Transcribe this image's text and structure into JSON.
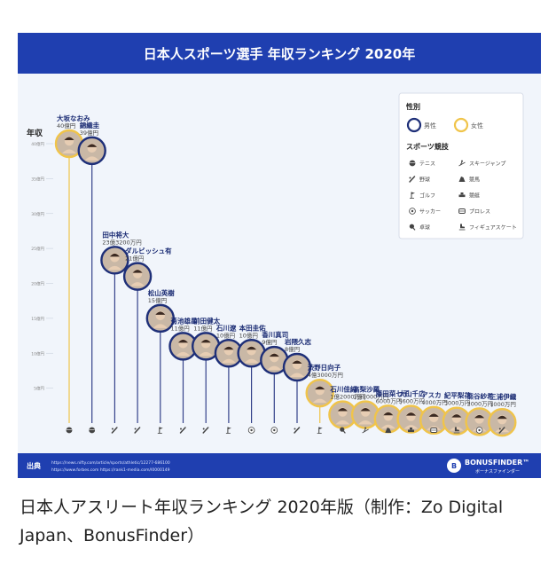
{
  "colors": {
    "header_bg": "#1f3fb0",
    "plot_bg": "#f1f5fb",
    "male": "#1e2f78",
    "female": "#f0c44a",
    "source_bg": "#1f3fb0",
    "male_line": "#34418a",
    "female_line": "#f0c44a",
    "photo_bg": "#c9b8a6"
  },
  "chart_data": {
    "type": "bar",
    "title": "日本人スポーツ選手 年収ランキング 2020年",
    "ylabel": "年収",
    "ylim": [
      0,
      40
    ],
    "yticks": [
      {
        "value": 5,
        "label": "5億円"
      },
      {
        "value": 10,
        "label": "10億円"
      },
      {
        "value": 15,
        "label": "15億円"
      },
      {
        "value": 20,
        "label": "20億円"
      },
      {
        "value": 25,
        "label": "25億円"
      },
      {
        "value": 30,
        "label": "30億円"
      },
      {
        "value": 35,
        "label": "35億円"
      },
      {
        "value": 40,
        "label": "40億円"
      }
    ],
    "athletes": [
      {
        "name": "大坂なおみ",
        "amount": "40億円",
        "value": 40,
        "gender": "female",
        "sport": "tennis"
      },
      {
        "name": "錦織圭",
        "amount": "39億円",
        "value": 39,
        "gender": "male",
        "sport": "tennis"
      },
      {
        "name": "田中将大",
        "amount": "23億3200万円",
        "value": 23.32,
        "gender": "male",
        "sport": "baseball"
      },
      {
        "name": "ダルビッシュ有",
        "amount": "21億円",
        "value": 21,
        "gender": "male",
        "sport": "baseball"
      },
      {
        "name": "松山英樹",
        "amount": "15億円",
        "value": 15,
        "gender": "male",
        "sport": "golf"
      },
      {
        "name": "菊池雄星",
        "amount": "11億円",
        "value": 11,
        "gender": "male",
        "sport": "baseball"
      },
      {
        "name": "前田健太",
        "amount": "11億円",
        "value": 11,
        "gender": "male",
        "sport": "baseball"
      },
      {
        "name": "石川遼",
        "amount": "10億円",
        "value": 10,
        "gender": "male",
        "sport": "golf"
      },
      {
        "name": "本田圭佑",
        "amount": "10億円",
        "value": 10,
        "gender": "male",
        "sport": "soccer"
      },
      {
        "name": "香川真司",
        "amount": "9億円",
        "value": 9,
        "gender": "male",
        "sport": "soccer"
      },
      {
        "name": "岩隈久志",
        "amount": "8億円",
        "value": 8,
        "gender": "male",
        "sport": "baseball"
      },
      {
        "name": "渋野日向子",
        "amount": "4億3000万円",
        "value": 4.3,
        "gender": "female",
        "sport": "golf"
      },
      {
        "name": "石川佳純",
        "amount": "1億2000万円",
        "value": 1.2,
        "gender": "female",
        "sport": "table-tennis"
      },
      {
        "name": "高梨沙羅",
        "amount": "1億2000万円",
        "value": 1.2,
        "gender": "female",
        "sport": "ski-jump"
      },
      {
        "name": "藤田菜七子",
        "amount": "6000万円",
        "value": 0.6,
        "gender": "female",
        "sport": "horse-racing"
      },
      {
        "name": "大山千広",
        "amount": "5600万円",
        "value": 0.56,
        "gender": "female",
        "sport": "boat-racing"
      },
      {
        "name": "アスカ",
        "amount": "4000万円",
        "value": 0.4,
        "gender": "female",
        "sport": "pro-wrestling"
      },
      {
        "name": "紀平梨花",
        "amount": "3000万円",
        "value": 0.3,
        "gender": "female",
        "sport": "figure-skating"
      },
      {
        "name": "熊谷紗希",
        "amount": "2000万円",
        "value": 0.2,
        "gender": "female",
        "sport": "soccer"
      },
      {
        "name": "三浦伊織",
        "amount": "1000万円",
        "value": 0.1,
        "gender": "female",
        "sport": "baseball"
      }
    ]
  },
  "legend": {
    "gender_title": "性別",
    "male_label": "男性",
    "female_label": "女性",
    "sport_title": "スポーツ競技",
    "sports": [
      {
        "key": "tennis",
        "label": "テニス"
      },
      {
        "key": "ski-jump",
        "label": "スキージャンプ"
      },
      {
        "key": "baseball",
        "label": "野球"
      },
      {
        "key": "horse-racing",
        "label": "競馬"
      },
      {
        "key": "golf",
        "label": "ゴルフ"
      },
      {
        "key": "boat-racing",
        "label": "競艇"
      },
      {
        "key": "soccer",
        "label": "サッカー"
      },
      {
        "key": "pro-wrestling",
        "label": "プロレス"
      },
      {
        "key": "table-tennis",
        "label": "卓球"
      },
      {
        "key": "figure-skating",
        "label": "フィギュアスケート"
      }
    ]
  },
  "source": {
    "label": "出典",
    "urls": [
      "https://news.nifty.com/article/sports/athletic/12277-686100",
      "https://www.forbes.com  https://rank1-media.com/I0000149"
    ]
  },
  "brand": {
    "name": "BONUSFINDER™",
    "sub": "ボーナスファインダー",
    "logo_letter": "B"
  },
  "caption": "日本人アスリート年収ランキング 2020年版（制作：Zo Digital Japan、BonusFinder）"
}
